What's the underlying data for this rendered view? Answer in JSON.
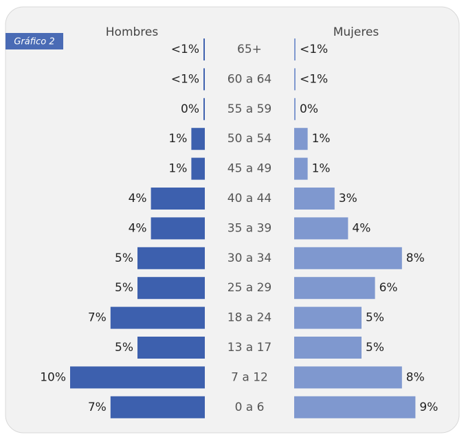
{
  "chart_data": {
    "type": "pyramid",
    "tag": "Gráfico 2",
    "categories": [
      "65+",
      "60 a 64",
      "55 a 59",
      "50 a 54",
      "45 a 49",
      "40 a 44",
      "35 a 39",
      "30 a 34",
      "25 a 29",
      "18 a 24",
      "13 a 17",
      "7 a 12",
      "0 a 6"
    ],
    "series": [
      {
        "name": "Hombres",
        "color": "#3d60ae",
        "side": "left",
        "values": [
          0.1,
          0.1,
          0,
          1,
          1,
          4,
          4,
          5,
          5,
          7,
          5,
          10,
          7
        ],
        "value_labels": [
          "<1%",
          "<1%",
          "0%",
          "1%",
          "1%",
          "4%",
          "4%",
          "5%",
          "5%",
          "7%",
          "5%",
          "10%",
          "7%"
        ]
      },
      {
        "name": "Mujeres",
        "color": "#7f98cf",
        "side": "right",
        "values": [
          0.1,
          0.1,
          0,
          1,
          1,
          3,
          4,
          8,
          6,
          5,
          5,
          8,
          9
        ],
        "value_labels": [
          "<1%",
          "<1%",
          "0%",
          "1%",
          "1%",
          "3%",
          "4%",
          "8%",
          "6%",
          "5%",
          "5%",
          "8%",
          "9%"
        ]
      }
    ]
  }
}
